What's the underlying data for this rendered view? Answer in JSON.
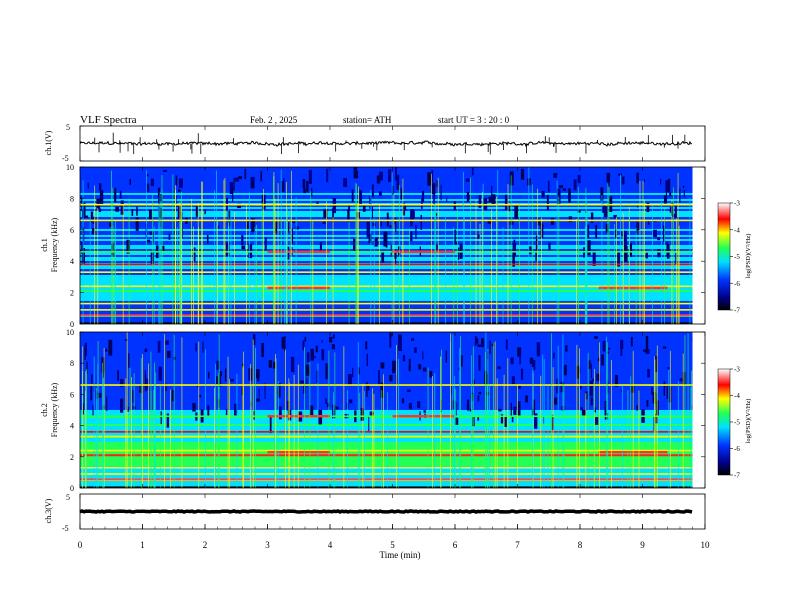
{
  "header": {
    "title": "VLF  Spectra",
    "date": "Feb. 2  , 2025",
    "station": "station= ATH",
    "start": "start  UT  =   3  : 20 : 0"
  },
  "chart_data": [
    {
      "type": "line",
      "panel": "ch1-waveform",
      "ylabel": "ch.1(V)",
      "ylim": [
        -5,
        5
      ],
      "yticks": [
        "5",
        "-5"
      ],
      "xlim": [
        0,
        10
      ],
      "series": [
        {
          "description_level": 0.0,
          "noise_amplitude": 0.8
        }
      ]
    },
    {
      "type": "heatmap",
      "panel": "ch1-spectrogram",
      "ylabel": "ch.1\nFrequency  (kHz)",
      "ylabel_line1": "ch.1",
      "ylabel_line2": "Frequency  (kHz)",
      "ylim": [
        0,
        10
      ],
      "yticks": [
        "0",
        "2",
        "4",
        "6",
        "8",
        "10"
      ],
      "xlim": [
        0,
        10
      ],
      "colorbar": {
        "label": "log(PSD)(V²/Hz)",
        "range": [
          -7,
          -3
        ],
        "ticks": [
          "-3",
          "-4",
          "-5",
          "-6",
          "-7"
        ]
      },
      "bands_khz": [
        0.5,
        0.9,
        1.3,
        2.1,
        2.4,
        3.3,
        3.8,
        4.6,
        6.6,
        7.6
      ]
    },
    {
      "type": "heatmap",
      "panel": "ch2-spectrogram",
      "ylabel_line1": "ch.2",
      "ylabel_line2": "Frequency  (kHz)",
      "ylim": [
        0,
        10
      ],
      "yticks": [
        "0",
        "2",
        "4",
        "6",
        "8",
        "10"
      ],
      "xlim": [
        0,
        10
      ],
      "colorbar": {
        "label": "log(PSD)(V²/Hz)",
        "range": [
          -7,
          -3
        ],
        "ticks": [
          "-3",
          "-4",
          "-5",
          "-6",
          "-7"
        ]
      },
      "bands_khz": [
        0.5,
        0.9,
        1.3,
        2.1,
        2.4,
        3.3,
        3.6,
        4.6,
        6.6
      ]
    },
    {
      "type": "line",
      "panel": "ch3-waveform",
      "ylabel": "ch.3(V)",
      "ylim": [
        -5,
        5
      ],
      "yticks": [
        "5",
        "-5"
      ],
      "xlim": [
        0,
        10
      ],
      "series": [
        {
          "description_level": 0.0,
          "noise_amplitude": 0.3
        }
      ]
    }
  ],
  "xaxis": {
    "label": "Time  (min)",
    "ticks": [
      "0",
      "1",
      "2",
      "3",
      "4",
      "5",
      "6",
      "7",
      "8",
      "9",
      "10"
    ]
  },
  "colors": {
    "dark_blue": "#00008b",
    "blue": "#0033ff",
    "cyan": "#00e0ff",
    "green": "#22ff55",
    "yellow": "#ffff00",
    "red": "#ff0000",
    "pink": "#ffdddd"
  }
}
